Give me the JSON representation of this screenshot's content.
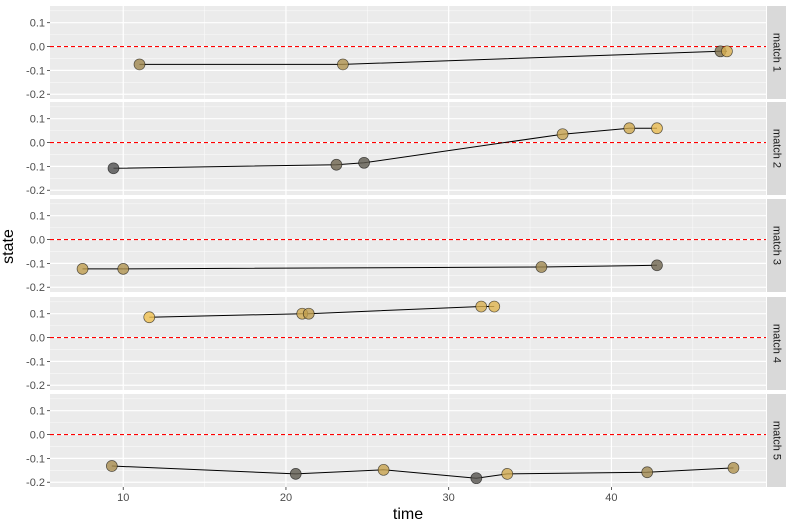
{
  "chart_data": {
    "type": "scatter",
    "facet_layout": "vertical",
    "xlabel": "time",
    "ylabel": "state",
    "xlim": [
      5.5,
      49.5
    ],
    "ylim": [
      -0.22,
      0.17
    ],
    "x_ticks": [
      10,
      20,
      30,
      40
    ],
    "y_ticks": [
      -0.2,
      -0.1,
      0.0,
      0.1
    ],
    "y_tick_labels": [
      "-0.2",
      "-0.1",
      "0.0",
      "0.1"
    ],
    "reference_line": {
      "y": 0,
      "style": "dashed",
      "color": "#ff0000"
    },
    "grid": true,
    "colors": {
      "panel_bg": "#ebebeb",
      "grid_major": "#ffffff",
      "strip_bg": "#d9d9d9",
      "line": "#000000",
      "point_dark": "#4d4d4d",
      "point_light": "#f0c050"
    },
    "point_color_scale": {
      "low": 0.0,
      "high": 1.0,
      "low_color": "#4d4d4d",
      "high_color": "#f0c050"
    },
    "panels": [
      {
        "label": "match 1",
        "points": [
          {
            "x": 11.0,
            "y": -0.075,
            "c": 0.5
          },
          {
            "x": 23.5,
            "y": -0.075,
            "c": 0.6
          },
          {
            "x": 46.7,
            "y": -0.02,
            "c": 0.3
          },
          {
            "x": 47.1,
            "y": -0.02,
            "c": 0.85
          }
        ]
      },
      {
        "label": "match 2",
        "points": [
          {
            "x": 9.4,
            "y": -0.108,
            "c": 0.0
          },
          {
            "x": 23.1,
            "y": -0.093,
            "c": 0.2
          },
          {
            "x": 24.8,
            "y": -0.085,
            "c": 0.1
          },
          {
            "x": 37.0,
            "y": 0.035,
            "c": 0.75
          },
          {
            "x": 41.1,
            "y": 0.06,
            "c": 0.8
          },
          {
            "x": 42.8,
            "y": 0.06,
            "c": 0.95
          }
        ]
      },
      {
        "label": "match 3",
        "points": [
          {
            "x": 7.5,
            "y": -0.123,
            "c": 0.7
          },
          {
            "x": 10.0,
            "y": -0.123,
            "c": 0.6
          },
          {
            "x": 35.7,
            "y": -0.115,
            "c": 0.5
          },
          {
            "x": 42.8,
            "y": -0.108,
            "c": 0.2
          }
        ]
      },
      {
        "label": "match 4",
        "points": [
          {
            "x": 11.6,
            "y": 0.085,
            "c": 1.0
          },
          {
            "x": 21.0,
            "y": 0.1,
            "c": 0.8
          },
          {
            "x": 21.4,
            "y": 0.1,
            "c": 0.7
          },
          {
            "x": 32.0,
            "y": 0.13,
            "c": 0.85
          },
          {
            "x": 32.8,
            "y": 0.13,
            "c": 0.9
          }
        ]
      },
      {
        "label": "match 5",
        "points": [
          {
            "x": 9.3,
            "y": -0.132,
            "c": 0.55
          },
          {
            "x": 20.6,
            "y": -0.165,
            "c": 0.1
          },
          {
            "x": 26.0,
            "y": -0.148,
            "c": 0.75
          },
          {
            "x": 31.7,
            "y": -0.183,
            "c": 0.05
          },
          {
            "x": 33.6,
            "y": -0.165,
            "c": 0.8
          },
          {
            "x": 42.2,
            "y": -0.158,
            "c": 0.5
          },
          {
            "x": 47.5,
            "y": -0.14,
            "c": 0.6
          }
        ]
      }
    ]
  }
}
